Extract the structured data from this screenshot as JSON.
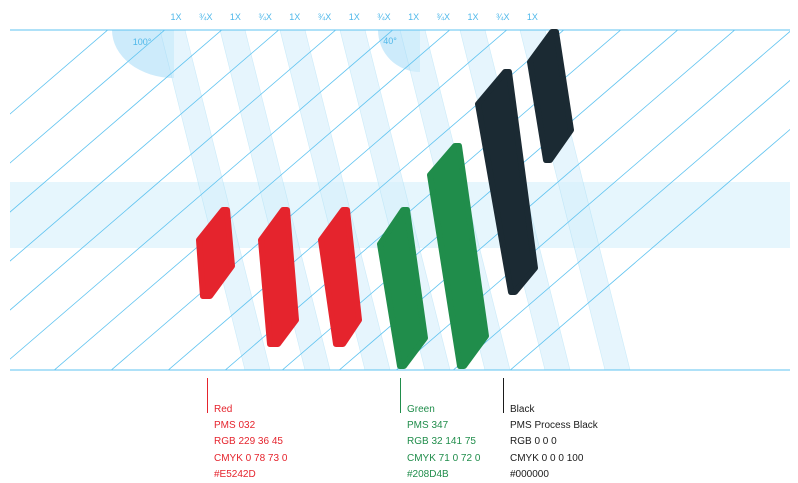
{
  "ratio_labels": [
    "1X",
    "¾X",
    "1X",
    "¾X",
    "1X",
    "¾X",
    "1X",
    "¾X",
    "1X",
    "¾X",
    "1X",
    "¾X",
    "1X"
  ],
  "angle_labels": [
    "100°",
    "40°"
  ],
  "colors": {
    "guide": "#5fc3f0",
    "guide_fill": "#d6f0fc",
    "band_fill": "#e6f6fd",
    "red": "#E5242D",
    "green": "#208D4B",
    "black": "#1b2a33"
  },
  "swatches": [
    {
      "name": "Red",
      "pms": "PMS 032",
      "rgb": "RGB 229 36 45",
      "cmyk": "CMYK 0 78 73 0",
      "hex": "#E5242D",
      "text_color": "#E5242D"
    },
    {
      "name": "Green",
      "pms": "PMS 347",
      "rgb": "RGB 32 141 75",
      "cmyk": "CMYK 71 0 72 0",
      "hex": "#208D4B",
      "text_color": "#208D4B"
    },
    {
      "name": "Black",
      "pms": "PMS Process Black",
      "rgb": "RGB 0 0 0",
      "cmyk": "CMYK 0 0 0 100",
      "hex": "#000000",
      "text_color": "#1b1b1b"
    }
  ]
}
